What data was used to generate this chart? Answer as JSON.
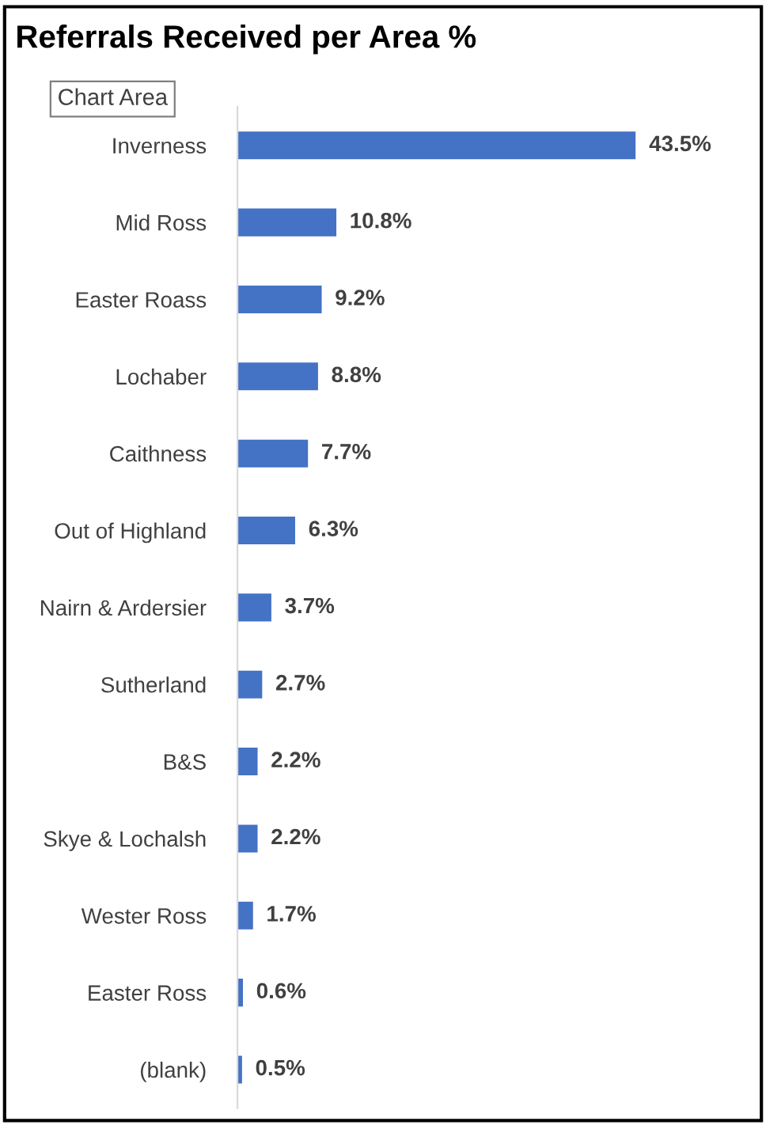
{
  "chart_data": {
    "type": "bar",
    "orientation": "horizontal",
    "title": "Referrals Received per Area %",
    "categories": [
      "Inverness",
      "Mid Ross",
      "Easter Roass",
      "Lochaber",
      "Caithness",
      "Out of Highland",
      "Nairn & Ardersier",
      "Sutherland",
      "B&S",
      "Skye & Lochalsh",
      "Wester Ross",
      "Easter Ross",
      "(blank)"
    ],
    "values": [
      43.5,
      10.8,
      9.2,
      8.8,
      7.7,
      6.3,
      3.7,
      2.7,
      2.2,
      2.2,
      1.7,
      0.6,
      0.5
    ],
    "value_labels": [
      "43.5%",
      "10.8%",
      "9.2%",
      "8.8%",
      "7.7%",
      "6.3%",
      "3.7%",
      "2.7%",
      "2.2%",
      "2.2%",
      "1.7%",
      "0.6%",
      "0.5%"
    ],
    "color": "#4472c4",
    "annotations": [
      "Chart Area"
    ]
  }
}
